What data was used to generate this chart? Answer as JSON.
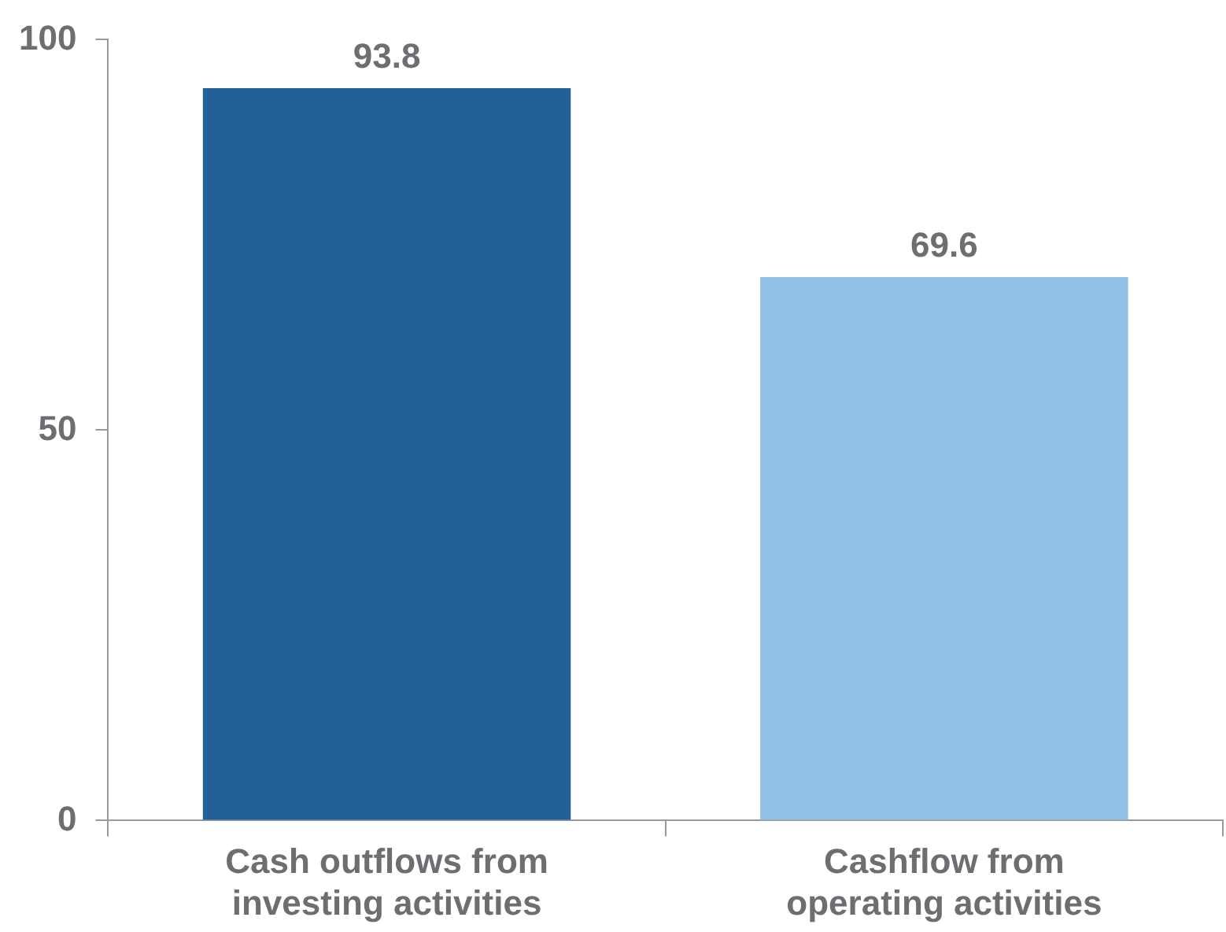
{
  "chart_data": {
    "type": "bar",
    "categories": [
      "Cash outflows from investing activities",
      "Cashflow from operating activities"
    ],
    "values": [
      93.8,
      69.6
    ],
    "colors": [
      "#22609a",
      "#93c0e6"
    ],
    "ylim": [
      0,
      100
    ],
    "yticks": [
      0,
      50,
      100
    ],
    "grid": false,
    "legend": false,
    "data_labels": true
  }
}
